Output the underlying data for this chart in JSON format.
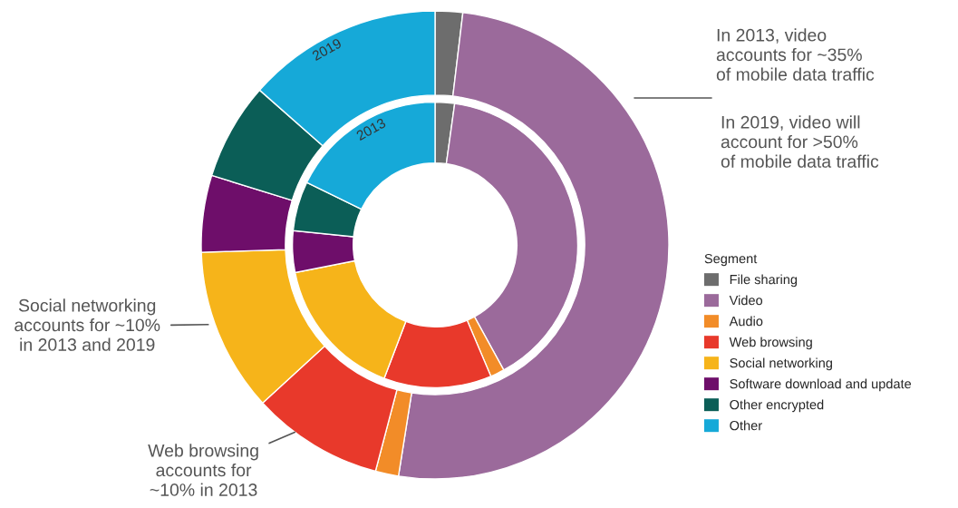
{
  "chart_data": {
    "type": "donut",
    "legend_title": "Segment",
    "legend": "right",
    "categories": [
      "File sharing",
      "Video",
      "Audio",
      "Web browsing",
      "Social networking",
      "Software download and update",
      "Other encrypted",
      "Other"
    ],
    "colors": [
      "#6d6d6d",
      "#9b6a9b",
      "#f28c28",
      "#e8392b",
      "#f6b41a",
      "#6e0e6a",
      "#0b5e57",
      "#16a9d8"
    ],
    "series": [
      {
        "name": "2019",
        "values": [
          1.9,
          50.6,
          1.6,
          9.1,
          11.3,
          5.3,
          6.7,
          13.5
        ]
      },
      {
        "name": "2013",
        "values": [
          2.2,
          39.8,
          1.6,
          12.2,
          16.1,
          4.7,
          5.6,
          17.8
        ]
      }
    ],
    "annotations": [
      "In 2013, video\naccounts for ~35%\nof mobile data traffic",
      "In 2019, video will\naccount for >50%\nof mobile data traffic",
      "Social networking\naccounts for ~10%\nin 2013 and 2019",
      "Web browsing\naccounts for\n~10% in 2013"
    ]
  }
}
